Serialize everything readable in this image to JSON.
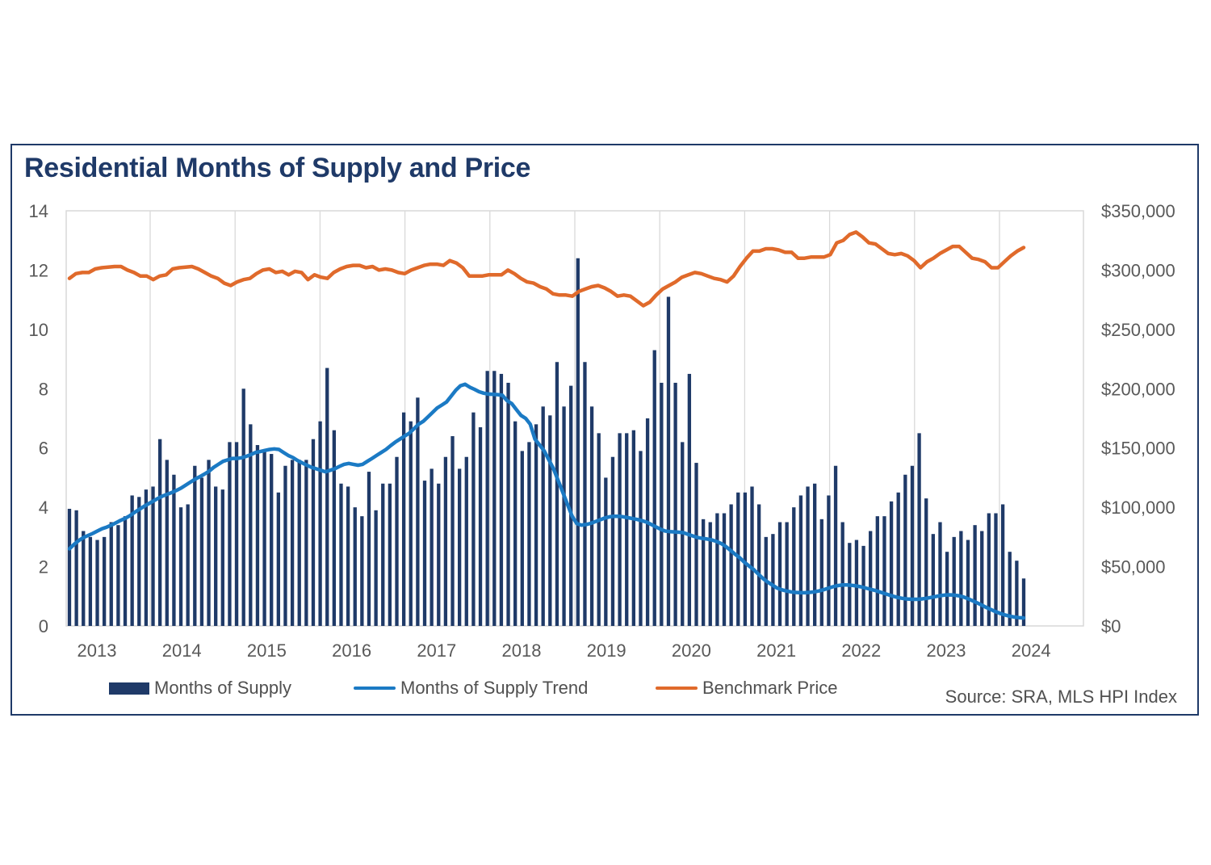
{
  "chart_data": {
    "type": "bar",
    "title": "Residential Months of Supply and Price",
    "source": "Source: SRA, MLS HPI Index",
    "y_left": {
      "min": 0,
      "max": 14,
      "ticks": [
        0,
        2,
        4,
        6,
        8,
        10,
        12,
        14
      ],
      "tick_labels": [
        "0",
        "2",
        "4",
        "6",
        "8",
        "10",
        "12",
        "14"
      ]
    },
    "y_right": {
      "min": 0,
      "max": 350000,
      "ticks": [
        0,
        50000,
        100000,
        150000,
        200000,
        250000,
        300000,
        350000
      ],
      "tick_labels": [
        "$0",
        "$50,000",
        "$100,000",
        "$150,000",
        "$200,000",
        "$250,000",
        "$300,000",
        "$350,000"
      ]
    },
    "x_labels": [
      "2013",
      "2014",
      "2015",
      "2016",
      "2017",
      "2018",
      "2019",
      "2020",
      "2021",
      "2022",
      "2023",
      "2024"
    ],
    "start_period": "2012-09",
    "period": "monthly",
    "colors": {
      "supply": "#1f3a68",
      "trend": "#1b7ac4",
      "price": "#e06a2b",
      "grid": "#d9d9d9",
      "axis_text": "#595959"
    },
    "series": [
      {
        "name": "Months of Supply",
        "type": "bar",
        "axis": "left",
        "values": [
          3.95,
          3.9,
          3.2,
          3.0,
          2.9,
          3.0,
          3.5,
          3.4,
          3.7,
          4.4,
          4.35,
          4.6,
          4.7,
          6.3,
          5.6,
          5.1,
          4.0,
          4.1,
          5.4,
          5.0,
          5.6,
          4.7,
          4.6,
          6.2,
          6.2,
          8.0,
          6.8,
          6.1,
          5.9,
          5.8,
          4.5,
          5.4,
          5.6,
          5.6,
          5.6,
          6.3,
          6.9,
          8.7,
          6.6,
          4.8,
          4.7,
          4.0,
          3.7,
          5.2,
          3.9,
          4.8,
          4.8,
          5.7,
          7.2,
          6.9,
          7.7,
          4.9,
          5.3,
          4.8,
          5.7,
          6.4,
          5.3,
          5.7,
          7.2,
          6.7,
          8.6,
          8.6,
          8.5,
          8.2,
          6.9,
          5.9,
          6.2,
          6.8,
          7.4,
          7.1,
          8.9,
          7.4,
          8.1,
          12.4,
          8.9,
          7.4,
          6.5,
          5.0,
          5.7,
          6.5,
          6.5,
          6.6,
          5.9,
          7.0,
          9.3,
          8.2,
          11.1,
          8.2,
          6.2,
          8.5,
          5.5,
          3.6,
          3.5,
          3.8,
          3.8,
          4.1,
          4.5,
          4.5,
          4.7,
          4.1,
          3.0,
          3.1,
          3.5,
          3.5,
          4.0,
          4.4,
          4.7,
          4.8,
          3.6,
          4.4,
          5.4,
          3.5,
          2.8,
          2.9,
          2.7,
          3.2,
          3.7,
          3.7,
          4.2,
          4.5,
          5.1,
          5.4,
          6.5,
          4.3,
          3.1,
          3.5,
          2.5,
          3.0,
          3.2,
          2.9,
          3.4,
          3.2,
          3.8,
          3.8,
          4.1,
          2.5,
          2.2,
          1.6
        ]
      },
      {
        "name": "Months of Supply Trend",
        "type": "line",
        "axis": "left",
        "values": [
          2.6,
          2.75,
          2.88,
          2.98,
          3.05,
          3.12,
          3.2,
          3.28,
          3.33,
          3.4,
          3.48,
          3.56,
          3.63,
          3.72,
          3.83,
          3.93,
          4.03,
          4.12,
          4.21,
          4.3,
          4.38,
          4.44,
          4.5,
          4.57,
          4.65,
          4.75,
          4.85,
          4.95,
          5.03,
          5.12,
          5.22,
          5.35,
          5.45,
          5.55,
          5.6,
          5.65,
          5.65,
          5.67,
          5.72,
          5.78,
          5.85,
          5.88,
          5.92,
          5.95,
          5.97,
          5.95,
          5.85,
          5.75,
          5.68,
          5.58,
          5.5,
          5.42,
          5.35,
          5.3,
          5.25,
          5.2,
          5.25,
          5.3,
          5.38,
          5.45,
          5.48,
          5.45,
          5.42,
          5.45,
          5.55,
          5.65,
          5.75,
          5.85,
          5.95,
          6.08,
          6.2,
          6.3,
          6.4,
          6.5,
          6.65,
          6.8,
          6.9,
          7.05,
          7.2,
          7.35,
          7.45,
          7.55,
          7.75,
          7.95,
          8.1,
          8.15,
          8.05,
          7.98,
          7.9,
          7.85,
          7.82,
          7.81,
          7.8,
          7.78,
          7.6,
          7.5,
          7.3,
          7.1,
          7.0,
          6.8,
          6.3,
          6.1,
          5.9,
          5.6,
          5.3,
          4.9,
          4.5,
          4.1,
          3.7,
          3.45,
          3.4,
          3.42,
          3.46,
          3.52,
          3.58,
          3.64,
          3.68,
          3.7,
          3.7,
          3.68,
          3.65,
          3.62,
          3.59,
          3.55,
          3.5,
          3.42,
          3.34,
          3.26,
          3.2,
          3.18,
          3.17,
          3.16,
          3.14,
          3.08,
          3.03,
          2.98,
          2.95,
          2.93,
          2.9,
          2.85,
          2.78,
          2.68,
          2.55,
          2.42,
          2.3,
          2.15,
          2.02,
          1.9,
          1.75,
          1.6,
          1.48,
          1.38,
          1.28,
          1.22,
          1.18,
          1.15,
          1.13,
          1.12,
          1.12,
          1.13,
          1.15,
          1.18,
          1.22,
          1.27,
          1.32,
          1.36,
          1.38,
          1.38,
          1.37,
          1.35,
          1.32,
          1.28,
          1.24,
          1.2,
          1.15,
          1.1,
          1.05,
          1.0,
          0.96,
          0.93,
          0.91,
          0.9,
          0.9,
          0.91,
          0.93,
          0.96,
          0.99,
          1.02,
          1.04,
          1.05,
          1.04,
          1.02,
          0.98,
          0.92,
          0.85,
          0.78,
          0.7,
          0.62,
          0.55,
          0.48,
          0.42,
          0.37,
          0.33,
          0.3,
          0.28,
          0.27
        ]
      },
      {
        "name": "Benchmark Price",
        "type": "line",
        "axis": "right",
        "values": [
          293000,
          297000,
          298000,
          298000,
          301000,
          302000,
          302500,
          303000,
          303000,
          300000,
          298000,
          295000,
          295000,
          292000,
          295000,
          296000,
          301000,
          302000,
          302500,
          303000,
          301000,
          298000,
          295000,
          293000,
          289000,
          287000,
          290000,
          292000,
          293000,
          297000,
          300000,
          301000,
          298000,
          299000,
          296000,
          299000,
          298000,
          292000,
          296000,
          294000,
          293000,
          298000,
          301000,
          303000,
          304000,
          304000,
          302000,
          303000,
          300000,
          301000,
          300000,
          298000,
          297000,
          300000,
          302000,
          304000,
          305000,
          305000,
          304000,
          308000,
          306000,
          302000,
          295000,
          295000,
          295000,
          296000,
          296000,
          296000,
          300000,
          297000,
          293000,
          290000,
          289000,
          286000,
          284000,
          280000,
          279000,
          279000,
          278000,
          282000,
          284000,
          286000,
          287000,
          285000,
          282000,
          278000,
          279000,
          278000,
          274000,
          270000,
          273000,
          279000,
          284000,
          287000,
          290000,
          294000,
          296000,
          298000,
          297000,
          295000,
          293000,
          292000,
          290000,
          295000,
          303000,
          310000,
          316000,
          316000,
          318000,
          318000,
          317000,
          315000,
          315000,
          310000,
          310000,
          311000,
          311000,
          311000,
          313000,
          323000,
          325000,
          330000,
          332000,
          328000,
          323000,
          322000,
          318000,
          314000,
          313000,
          314000,
          312000,
          308000,
          302000,
          307000,
          310000,
          314000,
          317000,
          320000,
          320000,
          315000,
          310000,
          309000,
          307000,
          302000,
          302000,
          307000,
          312000,
          316000,
          319000
        ]
      }
    ],
    "legend": [
      "Months of Supply",
      "Months of Supply Trend",
      "Benchmark Price"
    ]
  }
}
